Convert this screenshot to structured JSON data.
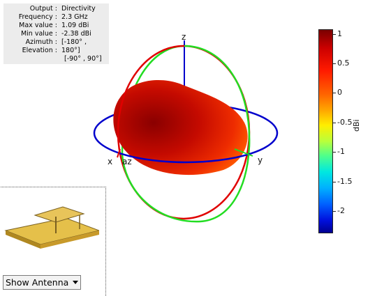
{
  "info": {
    "labels": [
      "Output :",
      "Frequency :",
      "Max value :",
      "Min value :",
      "Azimuth :",
      "Elevation :"
    ],
    "values": [
      "Directivity",
      "2.3 GHz",
      "1.09 dBi",
      "-2.38 dBi",
      "[-180° ,",
      "180°]",
      "[-90° , 90°]"
    ]
  },
  "axes": {
    "z": "z",
    "x": "x",
    "y": "y",
    "az": "az"
  },
  "colorbar": {
    "unit": "dBi",
    "ticks": [
      "1",
      "0.5",
      "0",
      "-0.5",
      "-1",
      "-1.5",
      "-2"
    ]
  },
  "colors": {
    "red": "#e00000",
    "green": "#22dd22",
    "blue": "#0000cc",
    "patch": "#e0b040"
  },
  "antenna_view": {
    "selected": "Show Antenna"
  }
}
